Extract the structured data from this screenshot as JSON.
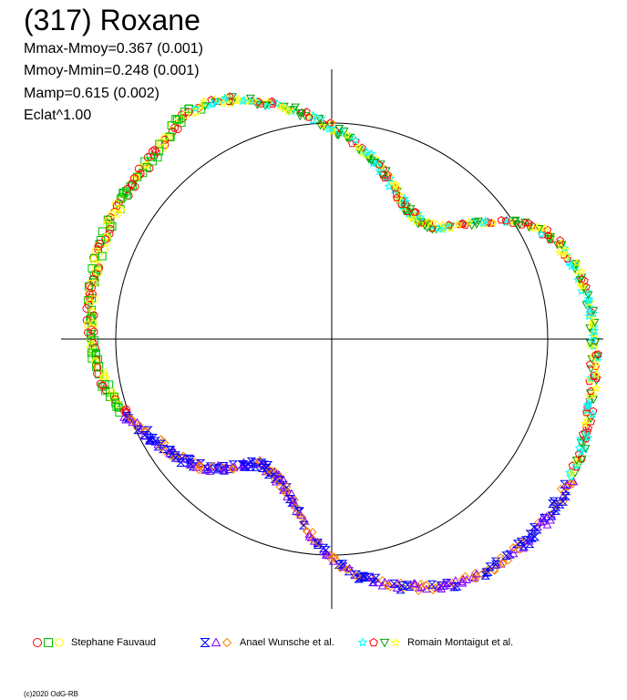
{
  "chart_data": {
    "type": "scatter",
    "title": "(317) Roxane",
    "stats": [
      "Mmax-Mmoy=0.367 (0.001)",
      "Mmoy-Mmin=0.248 (0.001)",
      "Mamp=0.615 (0.002)",
      "Eclat^1.00"
    ],
    "reference_circle_radius": 1.0,
    "curve_polar": {
      "theta_deg": [
        0,
        15,
        30,
        45,
        60,
        75,
        90,
        105,
        120,
        135,
        150,
        165,
        180,
        195,
        210,
        225,
        240,
        255,
        270,
        285,
        300,
        315,
        330,
        345
      ],
      "r": [
        1.21,
        1.18,
        1.06,
        0.73,
        0.7,
        0.83,
        0.98,
        1.13,
        1.24,
        1.18,
        1.16,
        1.14,
        1.11,
        1.05,
        0.94,
        0.84,
        0.67,
        0.75,
        1.02,
        1.18,
        1.28,
        1.3,
        1.28,
        1.24
      ]
    },
    "series": [
      {
        "name": "Stephane Fauvaud",
        "markers": [
          "circle",
          "square",
          "hexagon"
        ],
        "colors": [
          "#ff0000",
          "#00c000",
          "#ffff00"
        ],
        "theta_range_deg": [
          120,
          200
        ]
      },
      {
        "name": "Anael Wunsche et al.",
        "markers": [
          "hourglass",
          "triangle",
          "diamond"
        ],
        "colors": [
          "#0000ff",
          "#8000ff",
          "#ff8000"
        ],
        "theta_range_deg": [
          200,
          330
        ]
      },
      {
        "name": "Romain Montaigut et al.",
        "markers": [
          "star",
          "pentagon",
          "triangle-down",
          "star"
        ],
        "colors": [
          "#00ffff",
          "#ff0000",
          "#00a000",
          "#ffff00"
        ],
        "theta_range_deg": [
          330,
          480
        ]
      }
    ]
  },
  "legend": [
    {
      "label": "Stephane Fauvaud",
      "markers": [
        {
          "shape": "circle",
          "color": "#ff0000"
        },
        {
          "shape": "square",
          "color": "#00c000"
        },
        {
          "shape": "hexagon",
          "color": "#ffff00"
        }
      ]
    },
    {
      "label": "Anael Wunsche et al.",
      "markers": [
        {
          "shape": "hourglass",
          "color": "#0000ff"
        },
        {
          "shape": "triangle",
          "color": "#8000ff"
        },
        {
          "shape": "diamond",
          "color": "#ff8000"
        }
      ]
    },
    {
      "label": "Romain Montaigut et al.",
      "markers": [
        {
          "shape": "star",
          "color": "#00ffff"
        },
        {
          "shape": "pentagon",
          "color": "#ff0000"
        },
        {
          "shape": "triangle-down",
          "color": "#00a000"
        },
        {
          "shape": "star",
          "color": "#ffff00"
        }
      ]
    }
  ],
  "copyright": "(c)2020 OdG-RB"
}
